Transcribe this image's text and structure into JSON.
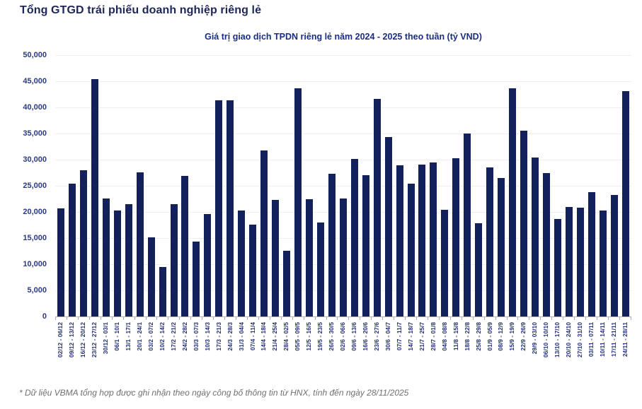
{
  "page": {
    "title": "Tổng GTGD trái phiếu doanh nghiệp riêng lẻ",
    "footnote": "* Dữ liệu VBMA tổng hợp được ghi nhận theo ngày công bố thông tin từ HNX, tính đến ngày 28/11/2025"
  },
  "colors": {
    "bar": "#12215c",
    "title": "#1e2657",
    "chart_title": "#1a2d85",
    "axis_label": "#2b3a80",
    "gridline": "#efefef",
    "axis_line": "#aeaeae",
    "footnote": "#707070"
  },
  "chart_data": {
    "type": "bar",
    "title": "Giá trị giao dịch TPDN riêng lẻ năm 2024 - 2025 theo tuần (tỷ VND)",
    "xlabel": "",
    "ylabel": "",
    "ylim": [
      0,
      50000
    ],
    "ytick_interval": 5000,
    "ytick_labels_top_to_bottom": [
      "50,000",
      "45,000",
      "40,000",
      "35,000",
      "30,000",
      "25,000",
      "20,000",
      "15,000",
      "10,000",
      "5,000",
      "0"
    ],
    "grid": true,
    "legend": "none",
    "categories": [
      "02/12 - 06/12",
      "09/12 - 13/12",
      "16/12 - 20/12",
      "23/12 - 27/12",
      "30/12 - 03/1",
      "06/1 - 10/1",
      "13/1 - 17/1",
      "20/1 - 24/1",
      "03/2 - 07/2",
      "10/2 - 14/2",
      "17/2 - 21/2",
      "24/2 - 28/2",
      "03/3 - 07/3",
      "10/3 - 14/3",
      "17/3 - 21/3",
      "24/3 - 28/3",
      "31/3 - 04/4",
      "07/4 - 11/4",
      "14/4 - 18/4",
      "21/4 - 25/4",
      "28/4 - 02/5",
      "05/5 - 09/5",
      "12/5 - 16/5",
      "19/5 - 23/5",
      "26/5 - 30/5",
      "02/6 - 06/6",
      "09/6 - 13/6",
      "16/6 - 20/6",
      "23/6 - 27/6",
      "30/6 - 04/7",
      "07/7 - 11/7",
      "14/7 - 18/7",
      "21/7 - 25/7",
      "28/7 - 01/8",
      "04/8 - 08/8",
      "11/8 - 15/8",
      "18/8 - 22/8",
      "25/8 - 29/8",
      "01/9 - 05/9",
      "08/9 - 12/9",
      "15/9 - 19/9",
      "22/9 - 26/9",
      "29/9 - 03/10",
      "06/10 - 10/10",
      "13/10 - 17/10",
      "20/10 - 24/10",
      "27/10 - 31/10",
      "03/11 - 07/11",
      "10/11 - 14/11",
      "17/11 - 21/11",
      "24/11 - 28/11"
    ],
    "values": [
      20700,
      25400,
      28000,
      45400,
      22500,
      20300,
      21500,
      27600,
      15200,
      9500,
      21500,
      26900,
      14300,
      19600,
      41400,
      41300,
      20300,
      17500,
      31700,
      22300,
      12600,
      43600,
      22400,
      18000,
      27300,
      22600,
      30100,
      27000,
      41600,
      34300,
      28900,
      25400,
      29000,
      29500,
      20400,
      30300,
      35000,
      17800,
      28500,
      26500,
      43600,
      35600,
      30400,
      27400,
      18700,
      21000,
      20800,
      23800,
      20300,
      23200,
      43100
    ]
  }
}
